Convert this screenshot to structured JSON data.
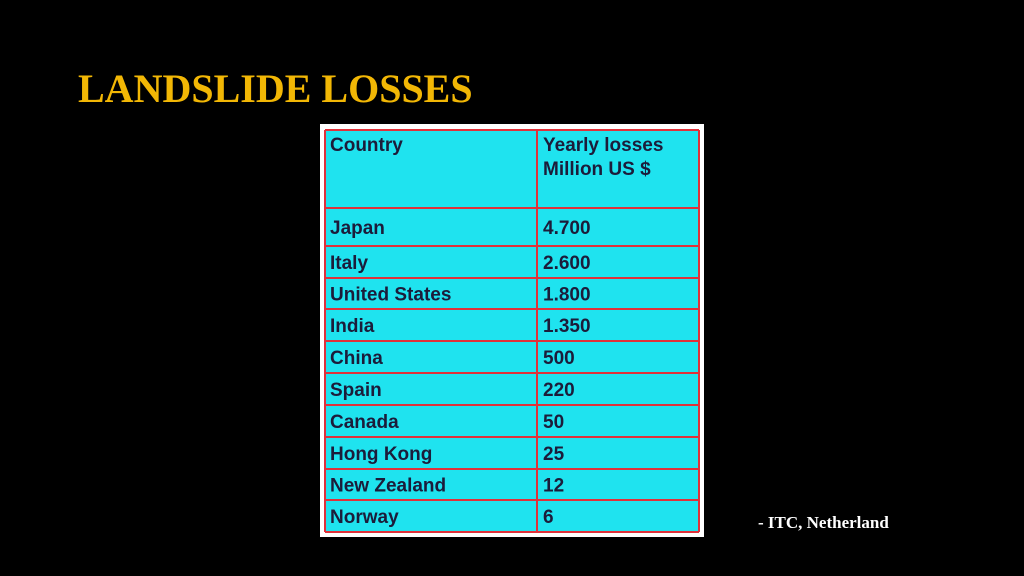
{
  "header": {
    "title": "LANDSLIDE LOSSES"
  },
  "table": {
    "columns": [
      "Country",
      "Yearly losses\nMillion US $"
    ],
    "rows": [
      [
        "Japan",
        "4.700"
      ],
      [
        "Italy",
        "2.600"
      ],
      [
        "United States",
        "1.800"
      ],
      [
        "India",
        "1.350"
      ],
      [
        "China",
        "500"
      ],
      [
        "Spain",
        "220"
      ],
      [
        "Canada",
        "50"
      ],
      [
        "Hong Kong",
        "25"
      ],
      [
        "New Zealand",
        "12"
      ],
      [
        "Norway",
        "6"
      ]
    ]
  },
  "source": "- ITC, Netherland"
}
